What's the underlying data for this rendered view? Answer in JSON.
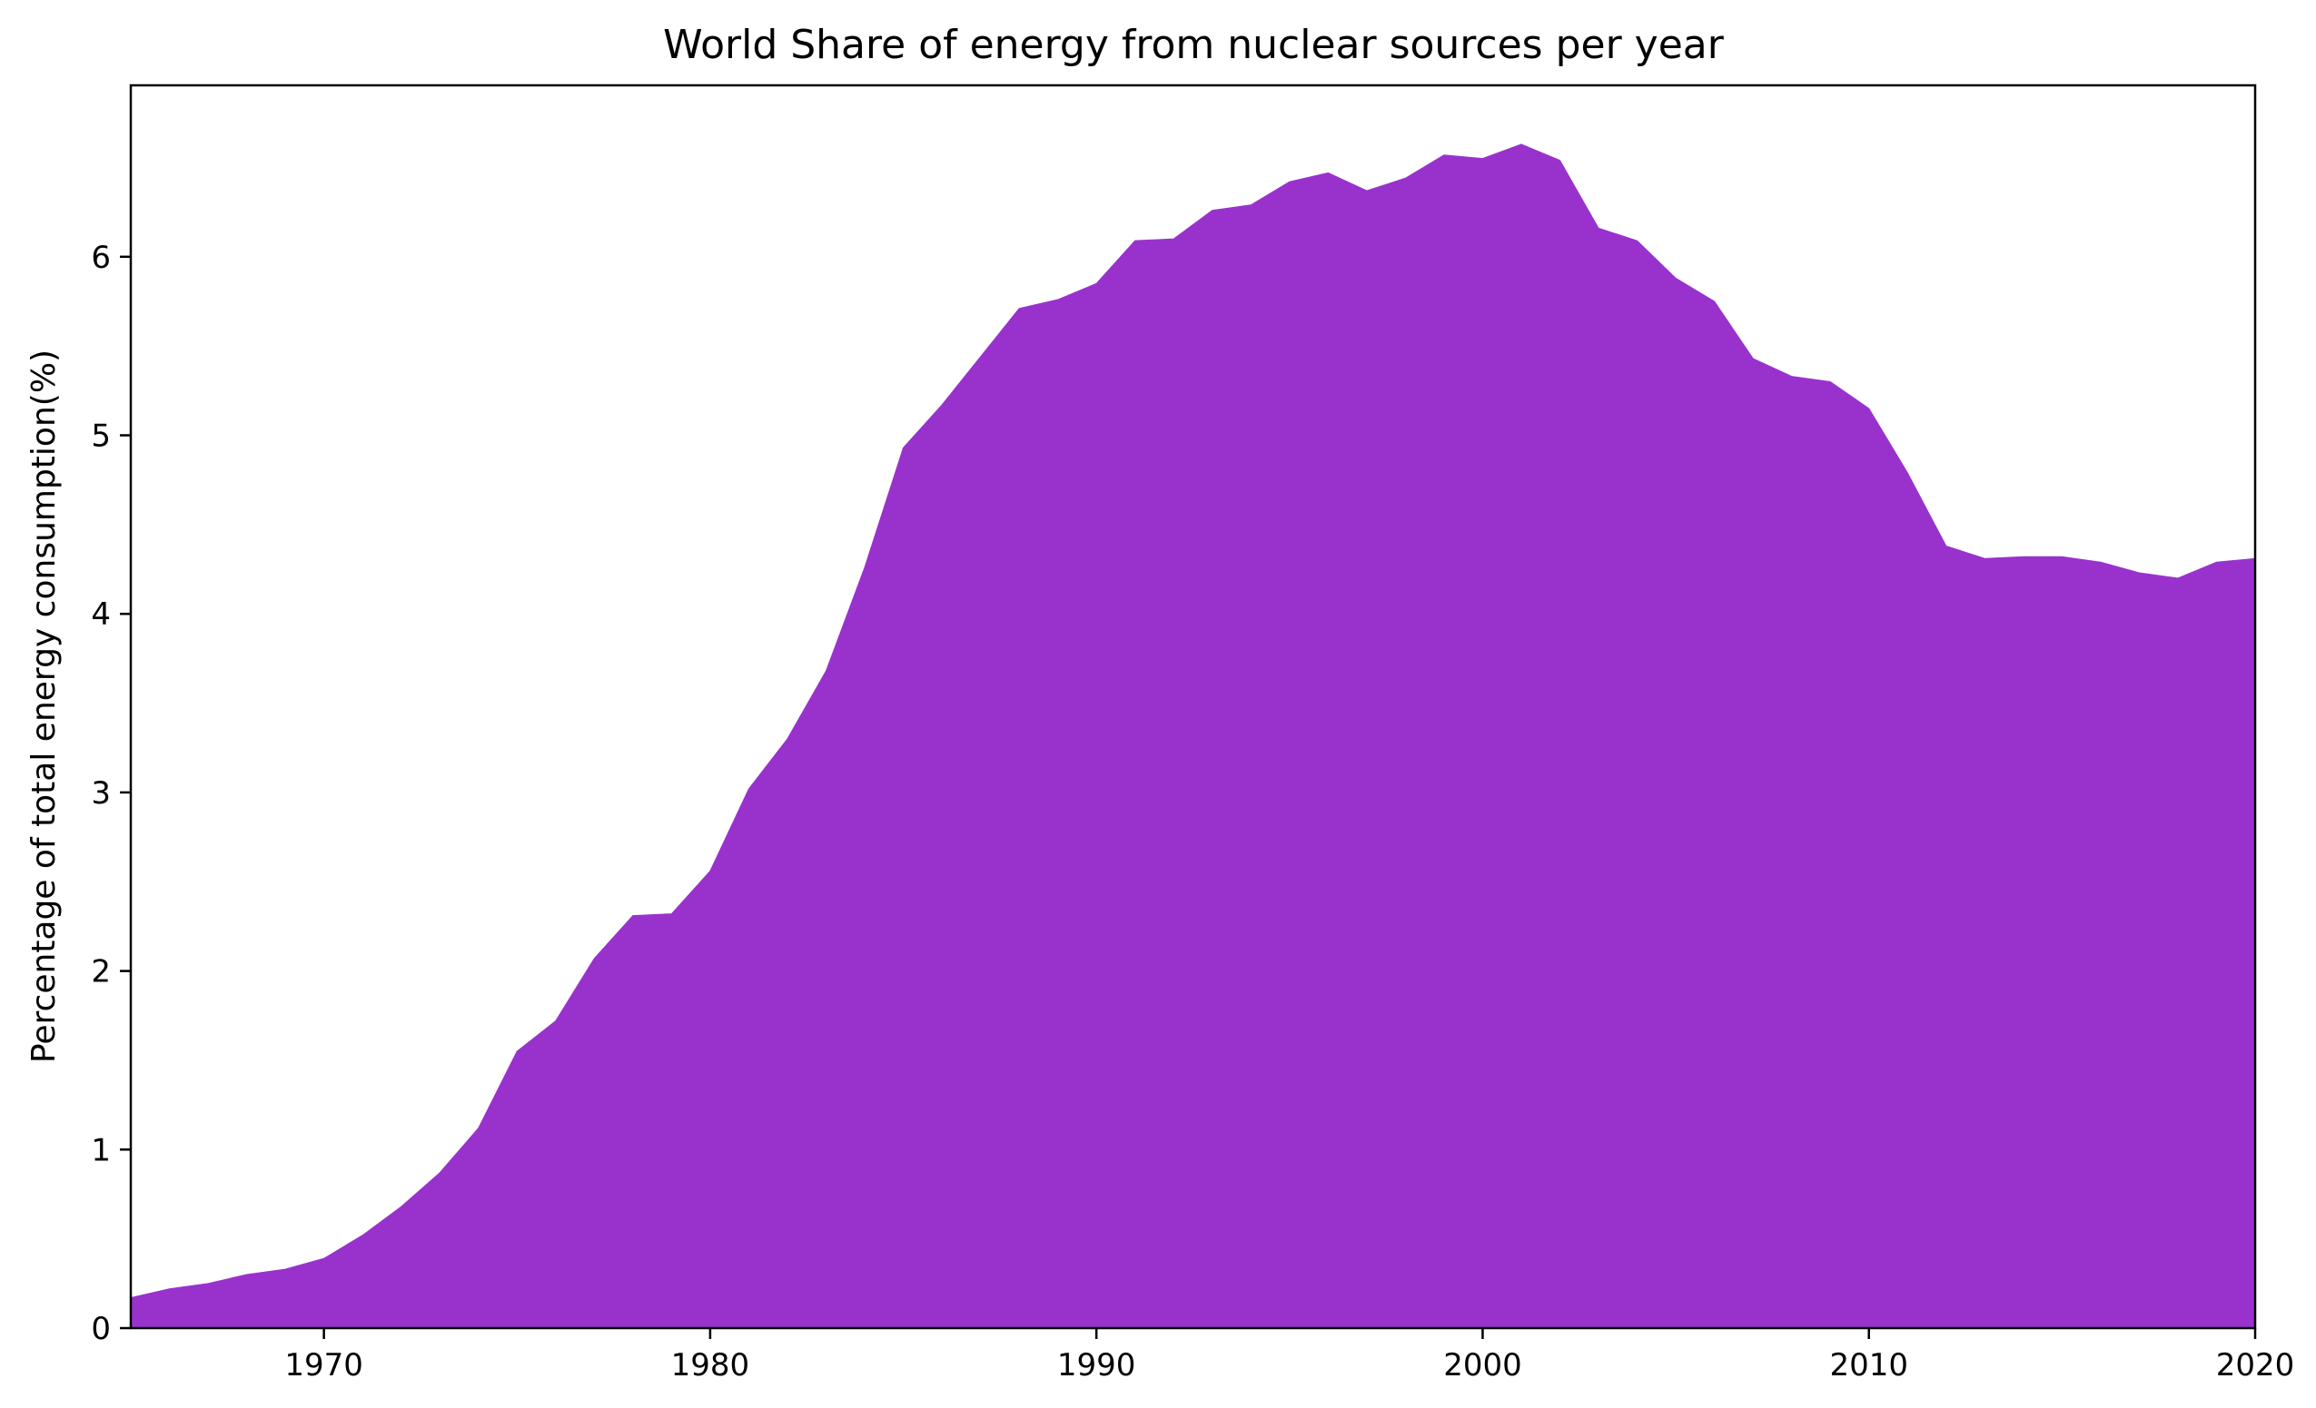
{
  "chart_data": {
    "type": "area",
    "title": "World Share of energy from nuclear sources per year",
    "xlabel": "",
    "ylabel": "Percentage of total energy consumption(%)",
    "xlim": [
      1965,
      2020
    ],
    "ylim": [
      0,
      6.96
    ],
    "xticks": [
      1970,
      1980,
      1990,
      2000,
      2010,
      2020
    ],
    "yticks": [
      0,
      1,
      2,
      3,
      4,
      5,
      6
    ],
    "grid": false,
    "legend": "none",
    "color": "#9932CC",
    "series": [
      {
        "x": [
          1965,
          1966,
          1967,
          1968,
          1969,
          1970,
          1971,
          1972,
          1973,
          1974,
          1975,
          1976,
          1977,
          1978,
          1979,
          1980,
          1981,
          1982,
          1983,
          1984,
          1985,
          1986,
          1987,
          1988,
          1989,
          1990,
          1991,
          1992,
          1993,
          1994,
          1995,
          1996,
          1997,
          1998,
          1999,
          2000,
          2001,
          2002,
          2003,
          2004,
          2005,
          2006,
          2007,
          2008,
          2009,
          2010,
          2011,
          2012,
          2013,
          2014,
          2015,
          2016,
          2017,
          2018,
          2019,
          2020
        ],
        "values": [
          0.17,
          0.22,
          0.25,
          0.3,
          0.33,
          0.39,
          0.52,
          0.68,
          0.87,
          1.12,
          1.55,
          1.72,
          2.07,
          2.31,
          2.32,
          2.56,
          3.02,
          3.3,
          3.68,
          4.26,
          4.93,
          5.17,
          5.44,
          5.71,
          5.76,
          5.85,
          6.09,
          6.1,
          6.26,
          6.29,
          6.42,
          6.47,
          6.37,
          6.44,
          6.57,
          6.55,
          6.63,
          6.54,
          6.16,
          6.09,
          5.88,
          5.75,
          5.43,
          5.33,
          5.3,
          5.15,
          4.79,
          4.38,
          4.31,
          4.32,
          4.32,
          4.29,
          4.23,
          4.2,
          4.29,
          4.31
        ]
      }
    ]
  }
}
